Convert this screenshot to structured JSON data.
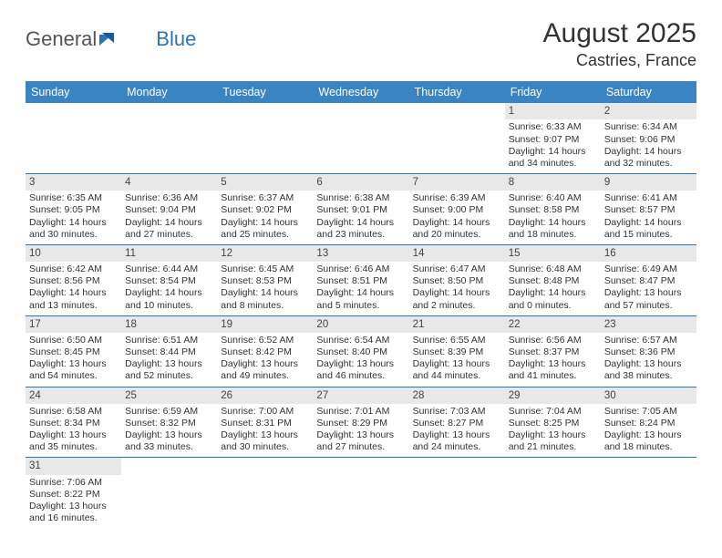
{
  "logo": {
    "text1": "General",
    "text2": "Blue"
  },
  "title": {
    "month": "August 2025",
    "location": "Castries, France"
  },
  "colors": {
    "header_bg": "#3b84c4",
    "rule": "#2f71b8",
    "daynum_bg": "#e8e8e8",
    "text": "#333333",
    "logo_gray": "#555555",
    "logo_blue": "#2f71b8"
  },
  "day_names": [
    "Sunday",
    "Monday",
    "Tuesday",
    "Wednesday",
    "Thursday",
    "Friday",
    "Saturday"
  ],
  "weeks": [
    [
      null,
      null,
      null,
      null,
      null,
      {
        "n": "1",
        "sr": "Sunrise: 6:33 AM",
        "ss": "Sunset: 9:07 PM",
        "d1": "Daylight: 14 hours",
        "d2": "and 34 minutes."
      },
      {
        "n": "2",
        "sr": "Sunrise: 6:34 AM",
        "ss": "Sunset: 9:06 PM",
        "d1": "Daylight: 14 hours",
        "d2": "and 32 minutes."
      }
    ],
    [
      {
        "n": "3",
        "sr": "Sunrise: 6:35 AM",
        "ss": "Sunset: 9:05 PM",
        "d1": "Daylight: 14 hours",
        "d2": "and 30 minutes."
      },
      {
        "n": "4",
        "sr": "Sunrise: 6:36 AM",
        "ss": "Sunset: 9:04 PM",
        "d1": "Daylight: 14 hours",
        "d2": "and 27 minutes."
      },
      {
        "n": "5",
        "sr": "Sunrise: 6:37 AM",
        "ss": "Sunset: 9:02 PM",
        "d1": "Daylight: 14 hours",
        "d2": "and 25 minutes."
      },
      {
        "n": "6",
        "sr": "Sunrise: 6:38 AM",
        "ss": "Sunset: 9:01 PM",
        "d1": "Daylight: 14 hours",
        "d2": "and 23 minutes."
      },
      {
        "n": "7",
        "sr": "Sunrise: 6:39 AM",
        "ss": "Sunset: 9:00 PM",
        "d1": "Daylight: 14 hours",
        "d2": "and 20 minutes."
      },
      {
        "n": "8",
        "sr": "Sunrise: 6:40 AM",
        "ss": "Sunset: 8:58 PM",
        "d1": "Daylight: 14 hours",
        "d2": "and 18 minutes."
      },
      {
        "n": "9",
        "sr": "Sunrise: 6:41 AM",
        "ss": "Sunset: 8:57 PM",
        "d1": "Daylight: 14 hours",
        "d2": "and 15 minutes."
      }
    ],
    [
      {
        "n": "10",
        "sr": "Sunrise: 6:42 AM",
        "ss": "Sunset: 8:56 PM",
        "d1": "Daylight: 14 hours",
        "d2": "and 13 minutes."
      },
      {
        "n": "11",
        "sr": "Sunrise: 6:44 AM",
        "ss": "Sunset: 8:54 PM",
        "d1": "Daylight: 14 hours",
        "d2": "and 10 minutes."
      },
      {
        "n": "12",
        "sr": "Sunrise: 6:45 AM",
        "ss": "Sunset: 8:53 PM",
        "d1": "Daylight: 14 hours",
        "d2": "and 8 minutes."
      },
      {
        "n": "13",
        "sr": "Sunrise: 6:46 AM",
        "ss": "Sunset: 8:51 PM",
        "d1": "Daylight: 14 hours",
        "d2": "and 5 minutes."
      },
      {
        "n": "14",
        "sr": "Sunrise: 6:47 AM",
        "ss": "Sunset: 8:50 PM",
        "d1": "Daylight: 14 hours",
        "d2": "and 2 minutes."
      },
      {
        "n": "15",
        "sr": "Sunrise: 6:48 AM",
        "ss": "Sunset: 8:48 PM",
        "d1": "Daylight: 14 hours",
        "d2": "and 0 minutes."
      },
      {
        "n": "16",
        "sr": "Sunrise: 6:49 AM",
        "ss": "Sunset: 8:47 PM",
        "d1": "Daylight: 13 hours",
        "d2": "and 57 minutes."
      }
    ],
    [
      {
        "n": "17",
        "sr": "Sunrise: 6:50 AM",
        "ss": "Sunset: 8:45 PM",
        "d1": "Daylight: 13 hours",
        "d2": "and 54 minutes."
      },
      {
        "n": "18",
        "sr": "Sunrise: 6:51 AM",
        "ss": "Sunset: 8:44 PM",
        "d1": "Daylight: 13 hours",
        "d2": "and 52 minutes."
      },
      {
        "n": "19",
        "sr": "Sunrise: 6:52 AM",
        "ss": "Sunset: 8:42 PM",
        "d1": "Daylight: 13 hours",
        "d2": "and 49 minutes."
      },
      {
        "n": "20",
        "sr": "Sunrise: 6:54 AM",
        "ss": "Sunset: 8:40 PM",
        "d1": "Daylight: 13 hours",
        "d2": "and 46 minutes."
      },
      {
        "n": "21",
        "sr": "Sunrise: 6:55 AM",
        "ss": "Sunset: 8:39 PM",
        "d1": "Daylight: 13 hours",
        "d2": "and 44 minutes."
      },
      {
        "n": "22",
        "sr": "Sunrise: 6:56 AM",
        "ss": "Sunset: 8:37 PM",
        "d1": "Daylight: 13 hours",
        "d2": "and 41 minutes."
      },
      {
        "n": "23",
        "sr": "Sunrise: 6:57 AM",
        "ss": "Sunset: 8:36 PM",
        "d1": "Daylight: 13 hours",
        "d2": "and 38 minutes."
      }
    ],
    [
      {
        "n": "24",
        "sr": "Sunrise: 6:58 AM",
        "ss": "Sunset: 8:34 PM",
        "d1": "Daylight: 13 hours",
        "d2": "and 35 minutes."
      },
      {
        "n": "25",
        "sr": "Sunrise: 6:59 AM",
        "ss": "Sunset: 8:32 PM",
        "d1": "Daylight: 13 hours",
        "d2": "and 33 minutes."
      },
      {
        "n": "26",
        "sr": "Sunrise: 7:00 AM",
        "ss": "Sunset: 8:31 PM",
        "d1": "Daylight: 13 hours",
        "d2": "and 30 minutes."
      },
      {
        "n": "27",
        "sr": "Sunrise: 7:01 AM",
        "ss": "Sunset: 8:29 PM",
        "d1": "Daylight: 13 hours",
        "d2": "and 27 minutes."
      },
      {
        "n": "28",
        "sr": "Sunrise: 7:03 AM",
        "ss": "Sunset: 8:27 PM",
        "d1": "Daylight: 13 hours",
        "d2": "and 24 minutes."
      },
      {
        "n": "29",
        "sr": "Sunrise: 7:04 AM",
        "ss": "Sunset: 8:25 PM",
        "d1": "Daylight: 13 hours",
        "d2": "and 21 minutes."
      },
      {
        "n": "30",
        "sr": "Sunrise: 7:05 AM",
        "ss": "Sunset: 8:24 PM",
        "d1": "Daylight: 13 hours",
        "d2": "and 18 minutes."
      }
    ],
    [
      {
        "n": "31",
        "sr": "Sunrise: 7:06 AM",
        "ss": "Sunset: 8:22 PM",
        "d1": "Daylight: 13 hours",
        "d2": "and 16 minutes."
      },
      null,
      null,
      null,
      null,
      null,
      null
    ]
  ]
}
